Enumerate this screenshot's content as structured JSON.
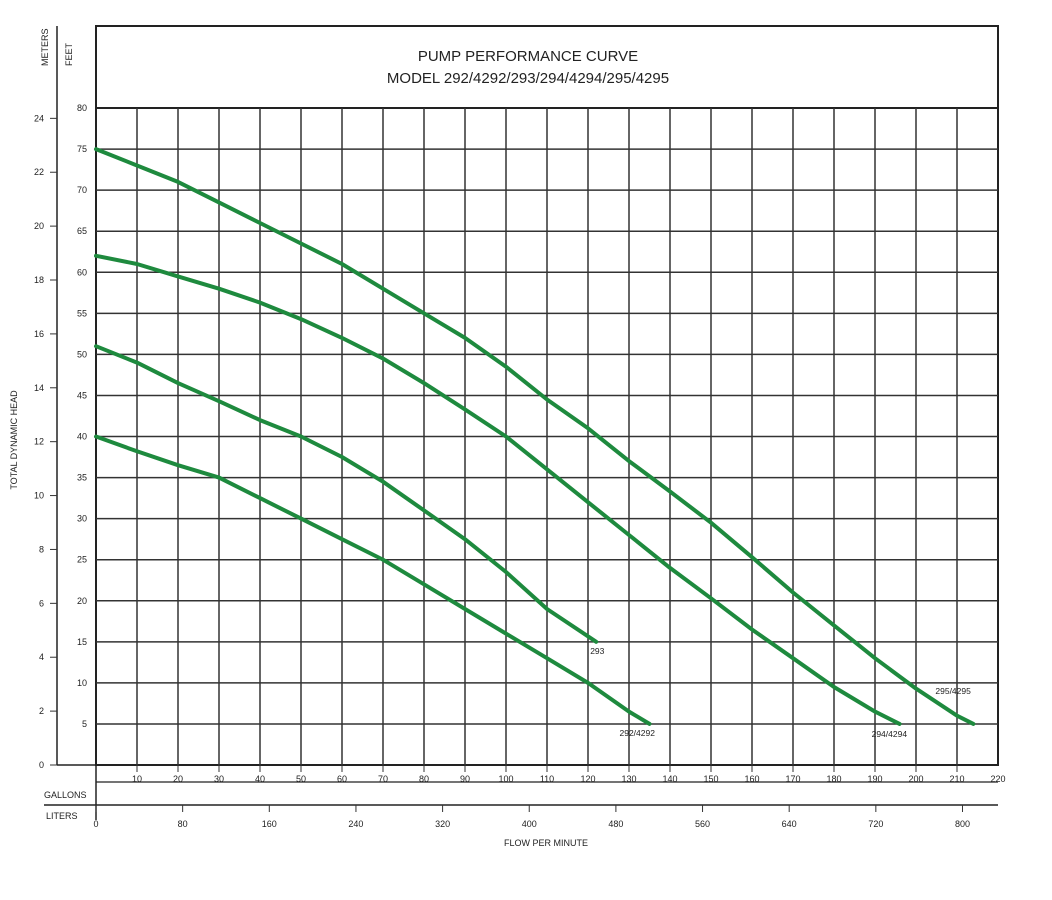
{
  "chart_data": {
    "type": "line",
    "title": "PUMP PERFORMANCE CURVE",
    "subtitle": "MODEL 292/4292/293/294/4294/295/4295",
    "xlabel": "FLOW PER MINUTE",
    "ylabel": "TOTAL DYNAMIC HEAD",
    "x_primary_unit": "GALLONS",
    "x_secondary_unit": "LITERS",
    "y_primary_unit": "FEET",
    "y_secondary_unit": "METERS",
    "xlim": [
      0,
      220
    ],
    "ylim": [
      0,
      80
    ],
    "x_ticks_gallons": [
      "10",
      "20",
      "30",
      "40",
      "50",
      "60",
      "70",
      "80",
      "90",
      "100",
      "110",
      "120",
      "130",
      "140",
      "150",
      "160",
      "170",
      "180",
      "190",
      "200",
      "210",
      "220"
    ],
    "x_ticks_liters": [
      "0",
      "80",
      "160",
      "240",
      "320",
      "400",
      "480",
      "560",
      "640",
      "720",
      "800"
    ],
    "y_ticks_feet": [
      "5",
      "10",
      "15",
      "20",
      "25",
      "30",
      "35",
      "40",
      "45",
      "50",
      "55",
      "60",
      "65",
      "70",
      "75",
      "80"
    ],
    "y_ticks_meters": [
      "0",
      "2",
      "4",
      "6",
      "8",
      "10",
      "12",
      "14",
      "16",
      "18",
      "20",
      "22",
      "24"
    ],
    "grid": true,
    "series": [
      {
        "name": "292/4292",
        "x": [
          0,
          10,
          20,
          30,
          40,
          50,
          60,
          70,
          80,
          90,
          100,
          110,
          120,
          130,
          135
        ],
        "y": [
          40,
          38.2,
          36.5,
          35,
          32.5,
          30,
          27.5,
          25,
          22,
          19,
          16,
          13,
          10,
          6.5,
          5
        ]
      },
      {
        "name": "293",
        "x": [
          0,
          10,
          20,
          30,
          40,
          50,
          60,
          70,
          80,
          90,
          100,
          110,
          122
        ],
        "y": [
          51,
          49,
          46.5,
          44.3,
          42,
          40,
          37.5,
          34.5,
          31,
          27.5,
          23.5,
          19,
          15
        ]
      },
      {
        "name": "294/4294",
        "x": [
          0,
          10,
          20,
          30,
          40,
          50,
          60,
          70,
          80,
          90,
          100,
          110,
          120,
          130,
          140,
          150,
          160,
          170,
          180,
          190,
          196
        ],
        "y": [
          62,
          61,
          59.5,
          58,
          56.3,
          54.3,
          52,
          49.5,
          46.5,
          43.3,
          40,
          36,
          32,
          28,
          24,
          20.3,
          16.5,
          13,
          9.5,
          6.5,
          5
        ]
      },
      {
        "name": "295/4295",
        "x": [
          0,
          10,
          20,
          30,
          40,
          50,
          60,
          70,
          80,
          90,
          100,
          110,
          120,
          130,
          140,
          150,
          160,
          170,
          180,
          190,
          200,
          210,
          214
        ],
        "y": [
          75,
          73,
          71,
          68.5,
          66,
          63.5,
          61,
          58,
          55,
          52,
          48.5,
          44.5,
          41,
          37,
          33.3,
          29.5,
          25.3,
          21,
          17,
          13,
          9.3,
          6,
          5
        ]
      }
    ],
    "series_color": "#1e8a3e"
  }
}
